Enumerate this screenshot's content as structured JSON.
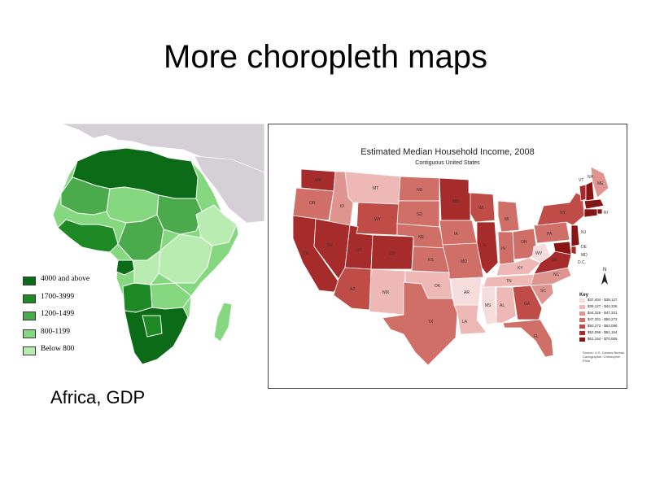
{
  "slide": {
    "title": "More choropleth maps"
  },
  "africa": {
    "caption": "Africa, GDP",
    "legend": [
      {
        "label": "4000 and above",
        "color": "#0b6b16"
      },
      {
        "label": "1700-3999",
        "color": "#1e8a26"
      },
      {
        "label": "1200-1499",
        "color": "#4aaa4c"
      },
      {
        "label": "800-1199",
        "color": "#86d880"
      },
      {
        "label": "Below 800",
        "color": "#b9ecb0"
      }
    ],
    "land_color": "#d5d0d6"
  },
  "us_map": {
    "title": "Estimated Median Household Income, 2008",
    "subtitle": "Contiguous United States",
    "key_title": "Key",
    "key": [
      {
        "label": "$37,404 - $39,127",
        "color": "#f7dcdc"
      },
      {
        "label": "$39,127 - $44,326",
        "color": "#eeb8b6"
      },
      {
        "label": "$44,326 - $47,331",
        "color": "#e09490"
      },
      {
        "label": "$47,331 - $50,272",
        "color": "#d06e68"
      },
      {
        "label": "$50,272 - $53,096",
        "color": "#bf4c46"
      },
      {
        "label": "$53,096 - $61,154",
        "color": "#a52c2a"
      },
      {
        "label": "$61,154 - $70,005",
        "color": "#8a1414"
      }
    ],
    "source": [
      "Source: U.S. Census Bureau",
      "Cartographer: Christopher Price"
    ],
    "states": [
      "WA",
      "OR",
      "CA",
      "ID",
      "NV",
      "MT",
      "WY",
      "UT",
      "AZ",
      "CO",
      "NM",
      "ND",
      "SD",
      "NE",
      "KS",
      "OK",
      "TX",
      "MN",
      "IA",
      "MO",
      "AR",
      "LA",
      "WI",
      "IL",
      "MS",
      "MI",
      "IN",
      "KY",
      "TN",
      "AL",
      "OH",
      "WV",
      "GA",
      "FL",
      "SC",
      "NC",
      "VA",
      "PA",
      "NY",
      "VT",
      "NH",
      "ME",
      "MA",
      "RI",
      "CT",
      "NJ",
      "DE",
      "MD",
      "D.C."
    ]
  }
}
